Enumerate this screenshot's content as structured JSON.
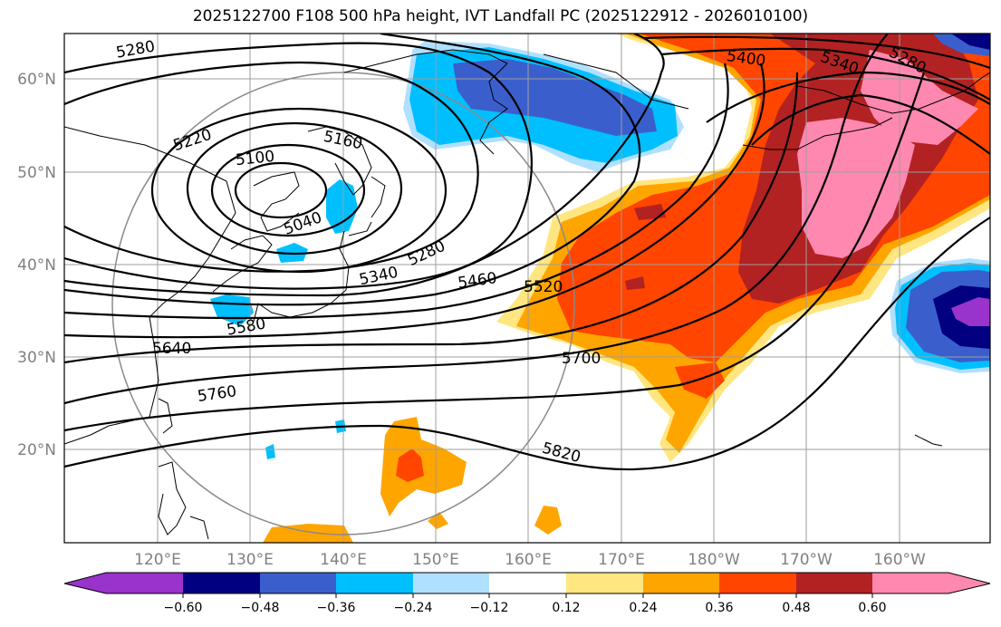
{
  "title": "2025122700 F108 500 hPa height, IVT Landfall PC (2025122912 - 2026010100)",
  "map": {
    "lon_labels": [
      "120°E",
      "130°E",
      "140°E",
      "150°E",
      "160°E",
      "170°E",
      "180°W",
      "170°W",
      "160°W"
    ],
    "lat_labels": [
      "60°N",
      "50°N",
      "40°N",
      "30°N",
      "20°N"
    ],
    "contour_labels": [
      "5280",
      "5220",
      "5100",
      "5160",
      "5040",
      "5280",
      "5340",
      "5460",
      "5520",
      "5400",
      "5340",
      "5280",
      "5580",
      "5640",
      "5700",
      "5760",
      "5820"
    ]
  },
  "colorbar": {
    "ticks": [
      "−0.60",
      "−0.48",
      "−0.36",
      "−0.24",
      "−0.12",
      "0.12",
      "0.24",
      "0.36",
      "0.48",
      "0.60"
    ],
    "colors": [
      "#9933cc",
      "#000080",
      "#3a5fcd",
      "#00bfff",
      "#b0e0ff",
      "#ffffff",
      "#ffe680",
      "#ffa500",
      "#ff4500",
      "#b22222",
      "#ff88b0",
      "#ff88b0"
    ]
  }
}
